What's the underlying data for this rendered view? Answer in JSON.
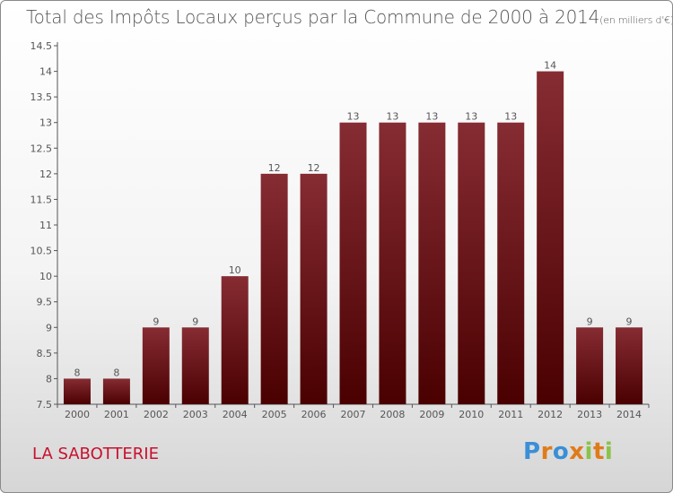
{
  "chart_data": {
    "type": "bar",
    "title": "Total des Impôts Locaux perçus par la Commune de 2000 à 2014",
    "subtitle": "(en milliers d'€)",
    "categories": [
      "2000",
      "2001",
      "2002",
      "2003",
      "2004",
      "2005",
      "2006",
      "2007",
      "2008",
      "2009",
      "2010",
      "2011",
      "2012",
      "2013",
      "2014"
    ],
    "values": [
      8,
      8,
      9,
      9,
      10,
      12,
      12,
      13,
      13,
      13,
      13,
      13,
      14,
      9,
      9
    ],
    "data_labels": [
      "8",
      "8",
      "9",
      "9",
      "10",
      "12",
      "12",
      "13",
      "13",
      "13",
      "13",
      "13",
      "14",
      "9",
      "9"
    ],
    "xlabel": "",
    "ylabel": "",
    "ylim": [
      7.5,
      14.5
    ],
    "yticks": [
      "7.5",
      "8",
      "8.5",
      "9",
      "9.5",
      "10",
      "10.5",
      "11",
      "11.5",
      "12",
      "12.5",
      "13",
      "13.5",
      "14",
      "14.5"
    ],
    "grid": false,
    "bar_color": "#6b0f16"
  },
  "commune": "LA SABOTTERIE",
  "logo": {
    "letters": [
      "P",
      "r",
      "o",
      "x",
      "i",
      "t",
      "i"
    ],
    "colors": [
      "#3a8fd6",
      "#e07b1a",
      "#3a8fd6",
      "#e07b1a",
      "#8bc34a",
      "#e07b1a",
      "#8bc34a"
    ]
  }
}
